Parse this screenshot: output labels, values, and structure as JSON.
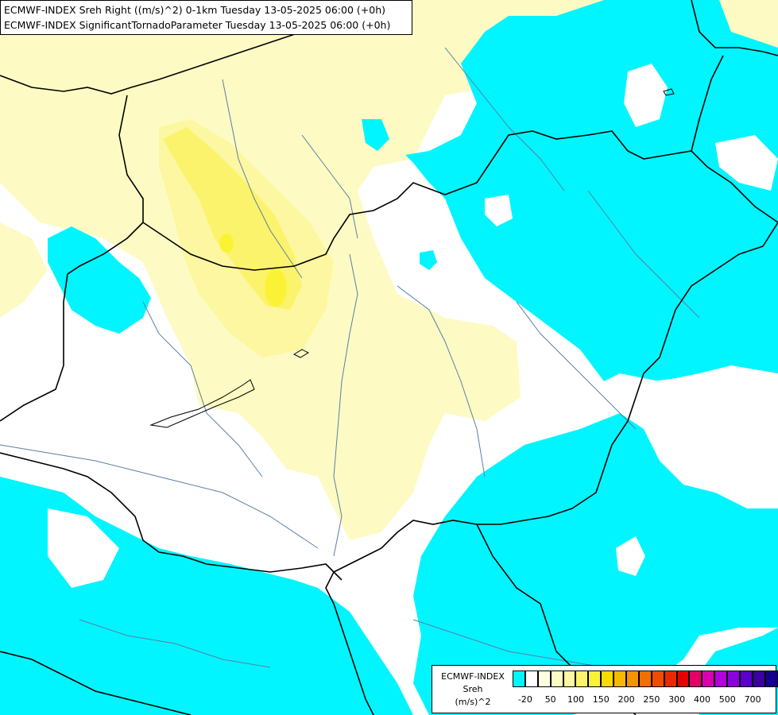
{
  "header": {
    "line1": "ECMWF-INDEX Sreh Right ((m/s)^2) 0-1km Tuesday 13-05-2025 06:00 (+0h)",
    "line2": "ECMWF-INDEX SignificantTornadoParameter Tuesday 13-05-2025 06:00 (+0h)"
  },
  "map": {
    "colors": {
      "background": "#ffffff",
      "cyan_fill": "#00f5ff",
      "pale_yellow_fill": "#fdfbc3",
      "light_yellow_fill": "#fcf7a0",
      "yellow_fill": "#fbf36b",
      "bright_yellow_fill": "#faf335",
      "border_color": "#000000",
      "river_color": "#5a7fa7"
    }
  },
  "legend": {
    "title1": "ECMWF-INDEX",
    "title2": "Sreh",
    "title3": "(m/s)^2",
    "swatch_colors": [
      "#00f5ff",
      "#ffffff",
      "#fffde0",
      "#fdfbc3",
      "#fcf7a0",
      "#fbf36b",
      "#faf335",
      "#f8dc00",
      "#f6b800",
      "#f49400",
      "#f27000",
      "#ef4c00",
      "#ec2800",
      "#e80000",
      "#e40064",
      "#d800b0",
      "#b400dc",
      "#8c00dc",
      "#5a00c8",
      "#3c00a0",
      "#14008c"
    ],
    "tick_labels": [
      "-20",
      "50",
      "100",
      "150",
      "200",
      "250",
      "300",
      "400",
      "500",
      "700"
    ]
  }
}
